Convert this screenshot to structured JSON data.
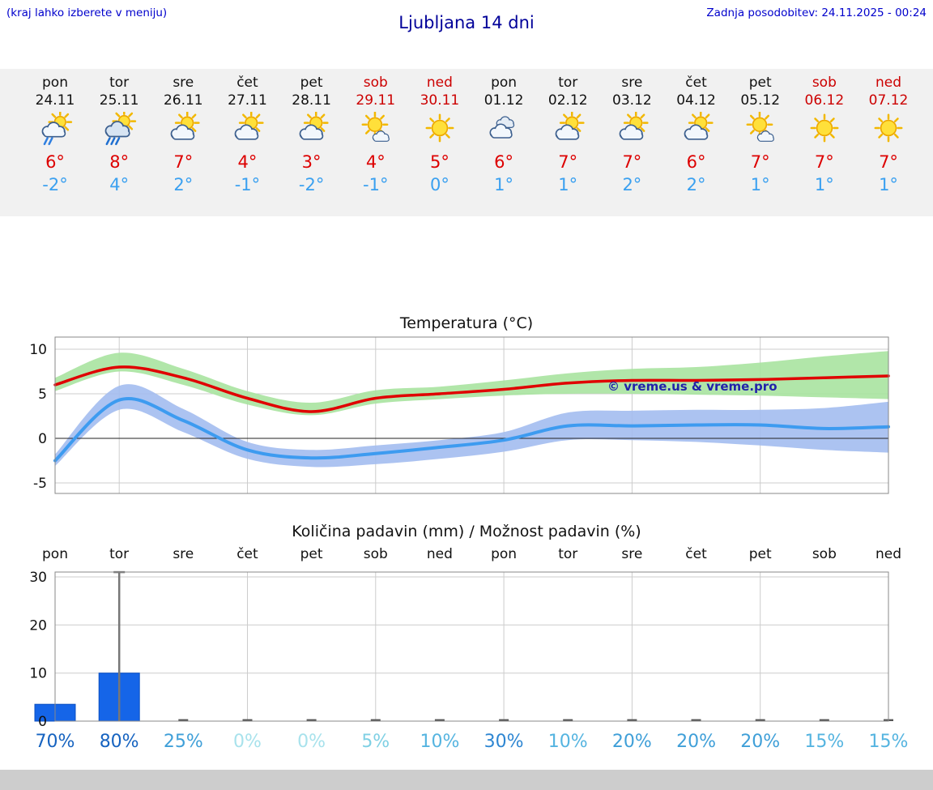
{
  "header": {
    "hint": "(kraj lahko izberete v meniju)",
    "title": "Ljubljana 14 dni",
    "updated": "Zadnja posodobitev: 24.11.2025 - 00:24"
  },
  "colors": {
    "high_temp": "#dd0000",
    "low_temp": "#3aa0f0",
    "weekend": "#cc0000",
    "weekday": "#111111",
    "link_blue": "#0000cc",
    "title_blue": "#000099"
  },
  "days": [
    {
      "name": "pon",
      "date": "24.11",
      "weekend": false,
      "icon": "sun-cloud-rain",
      "high": "6°",
      "low": "-2°"
    },
    {
      "name": "tor",
      "date": "25.11",
      "weekend": false,
      "icon": "sun-cloud-heavy-rain",
      "high": "8°",
      "low": "4°"
    },
    {
      "name": "sre",
      "date": "26.11",
      "weekend": false,
      "icon": "partly-cloudy",
      "high": "7°",
      "low": "2°"
    },
    {
      "name": "čet",
      "date": "27.11",
      "weekend": false,
      "icon": "partly-cloudy",
      "high": "4°",
      "low": "-1°"
    },
    {
      "name": "pet",
      "date": "28.11",
      "weekend": false,
      "icon": "partly-cloudy",
      "high": "3°",
      "low": "-2°"
    },
    {
      "name": "sob",
      "date": "29.11",
      "weekend": true,
      "icon": "mostly-sunny",
      "high": "4°",
      "low": "-1°"
    },
    {
      "name": "ned",
      "date": "30.11",
      "weekend": true,
      "icon": "sunny",
      "high": "5°",
      "low": "0°"
    },
    {
      "name": "pon",
      "date": "01.12",
      "weekend": false,
      "icon": "cloudy",
      "high": "6°",
      "low": "1°"
    },
    {
      "name": "tor",
      "date": "02.12",
      "weekend": false,
      "icon": "partly-cloudy",
      "high": "7°",
      "low": "1°"
    },
    {
      "name": "sre",
      "date": "03.12",
      "weekend": false,
      "icon": "partly-cloudy",
      "high": "7°",
      "low": "2°"
    },
    {
      "name": "čet",
      "date": "04.12",
      "weekend": false,
      "icon": "partly-cloudy",
      "high": "6°",
      "low": "2°"
    },
    {
      "name": "pet",
      "date": "05.12",
      "weekend": false,
      "icon": "mostly-sunny",
      "high": "7°",
      "low": "1°"
    },
    {
      "name": "sob",
      "date": "06.12",
      "weekend": true,
      "icon": "sunny",
      "high": "7°",
      "low": "1°"
    },
    {
      "name": "ned",
      "date": "07.12",
      "weekend": true,
      "icon": "sunny",
      "high": "7°",
      "low": "1°"
    }
  ],
  "chart_data": [
    {
      "type": "line",
      "title": "Temperatura (°C)",
      "x_labels": [
        "pon",
        "tor",
        "sre",
        "čet",
        "pet",
        "sob",
        "ned",
        "pon",
        "tor",
        "sre",
        "čet",
        "pet",
        "sob",
        "ned"
      ],
      "ylim": [
        -6,
        11
      ],
      "yticks": [
        10,
        5,
        0,
        -5
      ],
      "grid": true,
      "watermark": "© vreme.us & vreme.pro",
      "series": [
        {
          "name": "max temperature",
          "color": "#e00000",
          "values": [
            6,
            8,
            6.8,
            4.5,
            3,
            4.5,
            5,
            5.5,
            6.2,
            6.5,
            6.5,
            6.6,
            6.8,
            7
          ],
          "band_color": "#a9e3a0",
          "band_upper": [
            6.8,
            9.6,
            7.8,
            5.3,
            4,
            5.4,
            5.8,
            6.5,
            7.3,
            7.8,
            8,
            8.5,
            9.2,
            9.8
          ],
          "band_lower": [
            5.3,
            7.5,
            6,
            3.8,
            2.6,
            3.9,
            4.4,
            4.8,
            5,
            5,
            4.9,
            4.8,
            4.6,
            4.4
          ]
        },
        {
          "name": "min temperature",
          "color": "#3d9bf0",
          "values": [
            -2.5,
            4.3,
            2,
            -1.3,
            -2.2,
            -1.7,
            -1,
            -0.2,
            1.4,
            1.4,
            1.5,
            1.5,
            1.1,
            1.3
          ],
          "band_color": "#a3bdf0",
          "band_upper": [
            -1.8,
            5.9,
            3.3,
            -0.4,
            -1.3,
            -0.8,
            -0.2,
            0.7,
            2.9,
            3.1,
            3.2,
            3.2,
            3.4,
            4.1
          ],
          "band_lower": [
            -3.1,
            3.2,
            0.7,
            -2.3,
            -3.2,
            -2.9,
            -2.3,
            -1.5,
            -0.2,
            -0.2,
            -0.4,
            -0.8,
            -1.3,
            -1.6
          ]
        }
      ]
    },
    {
      "type": "bar",
      "title": "Količina padavin (mm) / Možnost padavin (%)",
      "x_labels": [
        "pon",
        "tor",
        "sre",
        "čet",
        "pet",
        "sob",
        "ned",
        "pon",
        "tor",
        "sre",
        "čet",
        "pet",
        "sob",
        "ned"
      ],
      "ylim": [
        0,
        32
      ],
      "yticks": [
        0,
        10,
        20,
        30
      ],
      "grid": true,
      "bar_color": "#1565e8",
      "values": [
        3.5,
        10,
        0.2,
        0.2,
        0.2,
        0.2,
        0.2,
        0.2,
        0.2,
        0.2,
        0.2,
        0.2,
        0.2,
        0.2
      ],
      "whiskers": [
        null,
        31,
        null,
        null,
        null,
        null,
        null,
        null,
        null,
        null,
        null,
        null,
        null,
        null
      ],
      "probabilities": [
        70,
        80,
        25,
        0,
        0,
        5,
        10,
        30,
        10,
        20,
        20,
        20,
        15,
        15
      ],
      "prob_color_scale": [
        {
          "min": 70,
          "color": "#1663c0"
        },
        {
          "min": 30,
          "color": "#2e86d2"
        },
        {
          "min": 20,
          "color": "#3f9fd8"
        },
        {
          "min": 10,
          "color": "#55b4e0"
        },
        {
          "min": 5,
          "color": "#7fd0e4"
        },
        {
          "min": 0,
          "color": "#a8e2ec"
        }
      ]
    }
  ]
}
